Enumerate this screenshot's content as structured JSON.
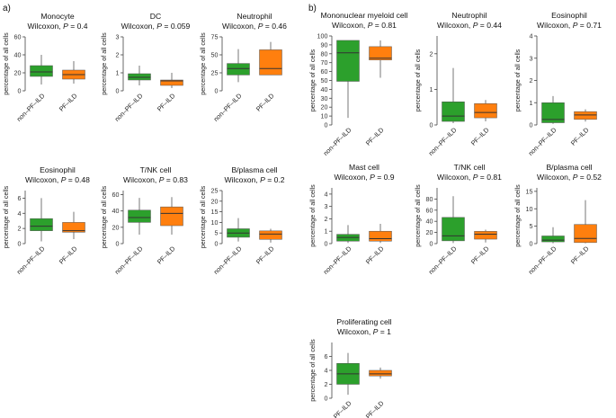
{
  "panel_labels": [
    "a)",
    "b)"
  ],
  "colors": {
    "non_pf_ild": "#2ca02c",
    "pf_ild": "#ff7f0e",
    "median": "#333333",
    "whisker": "#555555"
  },
  "chart_data": [
    {
      "panel": "a",
      "type": "box",
      "title": "Monocyte",
      "test": "Wilcoxon",
      "p_value": "0.4",
      "ylabel": "percentage of all cells",
      "categories": [
        "non–PF–ILD",
        "PF–ILD"
      ],
      "ylim": [
        0,
        60
      ],
      "yticks": [
        0,
        20,
        40,
        60
      ],
      "series": [
        {
          "name": "non–PF–ILD",
          "min": 7,
          "q1": 16,
          "median": 21,
          "q3": 28,
          "max": 40
        },
        {
          "name": "PF–ILD",
          "min": 8,
          "q1": 13,
          "median": 18,
          "q3": 23,
          "max": 33
        }
      ]
    },
    {
      "panel": "a",
      "type": "box",
      "title": "DC",
      "test": "Wilcoxon",
      "p_value": "0.059",
      "ylabel": "percentage of all cells",
      "categories": [
        "non–PF–ILD",
        "PF–ILD"
      ],
      "ylim": [
        0,
        3
      ],
      "yticks": [
        0,
        1,
        2,
        3
      ],
      "series": [
        {
          "name": "non–PF–ILD",
          "min": 0.3,
          "q1": 0.6,
          "median": 0.75,
          "q3": 0.95,
          "max": 1.4
        },
        {
          "name": "PF–ILD",
          "min": 0.15,
          "q1": 0.3,
          "median": 0.55,
          "q3": 0.6,
          "max": 1.0
        }
      ]
    },
    {
      "panel": "a",
      "type": "box",
      "title": "Neutrophil",
      "test": "Wilcoxon",
      "p_value": "0.46",
      "ylabel": "percentage of all cells",
      "categories": [
        "non–PF–ILD",
        "PF–ILD"
      ],
      "ylim": [
        0,
        75
      ],
      "yticks": [
        0,
        25,
        50,
        75
      ],
      "series": [
        {
          "name": "non–PF–ILD",
          "min": 12,
          "q1": 22,
          "median": 31,
          "q3": 38,
          "max": 58
        },
        {
          "name": "PF–ILD",
          "min": 22,
          "q1": 22,
          "median": 31,
          "q3": 57,
          "max": 68
        }
      ]
    },
    {
      "panel": "a",
      "type": "box",
      "title": "Eosinophil",
      "test": "Wilcoxon",
      "p_value": "0.48",
      "ylabel": "percentage of all cells",
      "categories": [
        "non–PF–ILD",
        "PF–ILD"
      ],
      "ylim": [
        0,
        7
      ],
      "yticks": [
        0,
        2,
        4,
        6
      ],
      "series": [
        {
          "name": "non–PF–ILD",
          "min": 0.3,
          "q1": 1.7,
          "median": 2.3,
          "q3": 3.3,
          "max": 6.0
        },
        {
          "name": "PF–ILD",
          "min": 0.6,
          "q1": 1.5,
          "median": 1.7,
          "q3": 2.8,
          "max": 4.2
        }
      ]
    },
    {
      "panel": "a",
      "type": "box",
      "title": "T/NK cell",
      "test": "Wilcoxon",
      "p_value": "0.83",
      "ylabel": "percentage of all cells",
      "categories": [
        "non–PF–ILD",
        "PF–ILD"
      ],
      "ylim": [
        0,
        65
      ],
      "yticks": [
        0,
        20,
        40,
        60
      ],
      "series": [
        {
          "name": "non–PF–ILD",
          "min": 11,
          "q1": 26,
          "median": 32,
          "q3": 41,
          "max": 56
        },
        {
          "name": "PF–ILD",
          "min": 11,
          "q1": 22,
          "median": 37,
          "q3": 45,
          "max": 57
        }
      ]
    },
    {
      "panel": "a",
      "type": "box",
      "title": "B/plasma cell",
      "test": "Wilcoxon",
      "p_value": "0.2",
      "ylabel": "percentage of all cells",
      "categories": [
        "non–PF–ILD",
        "PF–ILD"
      ],
      "ylim": [
        0,
        25
      ],
      "yticks": [
        0,
        5,
        10,
        15,
        20,
        25
      ],
      "series": [
        {
          "name": "non–PF–ILD",
          "min": 1,
          "q1": 3,
          "median": 5,
          "q3": 7,
          "max": 12
        },
        {
          "name": "PF–ILD",
          "min": 0.5,
          "q1": 2,
          "median": 4.5,
          "q3": 6,
          "max": 7
        }
      ]
    },
    {
      "panel": "b",
      "type": "box",
      "title": "Mononuclear myeloid cell",
      "test": "Wilcoxon",
      "p_value": "0.81",
      "ylabel": "percentage of all cells",
      "categories": [
        "non–PF–ILD",
        "PF–ILD"
      ],
      "ylim": [
        0,
        100
      ],
      "yticks": [
        0,
        10,
        20,
        30,
        40,
        50,
        60,
        70,
        80,
        90,
        100
      ],
      "series": [
        {
          "name": "non–PF–ILD",
          "min": 8,
          "q1": 49,
          "median": 81,
          "q3": 95,
          "max": 95
        },
        {
          "name": "PF–ILD",
          "min": 53,
          "q1": 73,
          "median": 75,
          "q3": 88,
          "max": 95
        }
      ]
    },
    {
      "panel": "b",
      "type": "box",
      "title": "Neutrophil",
      "test": "Wilcoxon",
      "p_value": "0.44",
      "ylabel": "percentage of all cells",
      "categories": [
        "non–PF–ILD",
        "PF–ILD"
      ],
      "ylim": [
        0,
        2.5
      ],
      "yticks": [
        0,
        1,
        2
      ],
      "series": [
        {
          "name": "non–PF–ILD",
          "min": 0.05,
          "q1": 0.1,
          "median": 0.25,
          "q3": 0.65,
          "max": 1.6
        },
        {
          "name": "PF–ILD",
          "min": 0.1,
          "q1": 0.2,
          "median": 0.35,
          "q3": 0.6,
          "max": 0.7
        }
      ]
    },
    {
      "panel": "b",
      "type": "box",
      "title": "Eosinophil",
      "test": "Wilcoxon",
      "p_value": "0.71",
      "ylabel": "percentage of all cells",
      "categories": [
        "non–PF–ILD",
        "PF–ILD"
      ],
      "ylim": [
        0,
        4
      ],
      "yticks": [
        0,
        1,
        2,
        3,
        4
      ],
      "series": [
        {
          "name": "non–PF–ILD",
          "min": 0.05,
          "q1": 0.1,
          "median": 0.25,
          "q3": 1.0,
          "max": 1.3
        },
        {
          "name": "PF–ILD",
          "min": 0.15,
          "q1": 0.25,
          "median": 0.45,
          "q3": 0.6,
          "max": 0.7
        }
      ]
    },
    {
      "panel": "b",
      "type": "box",
      "title": "Mast cell",
      "test": "Wilcoxon",
      "p_value": "0.9",
      "ylabel": "percentage of all cells",
      "categories": [
        "non–PF–ILD",
        "PF–ILD"
      ],
      "ylim": [
        0,
        4.5
      ],
      "yticks": [
        0,
        1,
        2,
        3,
        4
      ],
      "series": [
        {
          "name": "non–PF–ILD",
          "min": 0.05,
          "q1": 0.2,
          "median": 0.5,
          "q3": 0.75,
          "max": 1.5
        },
        {
          "name": "PF–ILD",
          "min": 0.05,
          "q1": 0.2,
          "median": 0.4,
          "q3": 1.0,
          "max": 1.6
        }
      ]
    },
    {
      "panel": "b",
      "type": "box",
      "title": "T/NK cell",
      "test": "Wilcoxon",
      "p_value": "0.81",
      "ylabel": "percentage of all cells",
      "categories": [
        "non–PF–ILD",
        "PF–ILD"
      ],
      "ylim": [
        0,
        100
      ],
      "yticks": [
        0,
        20,
        40,
        60,
        80
      ],
      "series": [
        {
          "name": "non–PF–ILD",
          "min": 1,
          "q1": 5,
          "median": 14,
          "q3": 47,
          "max": 85
        },
        {
          "name": "PF–ILD",
          "min": 2,
          "q1": 8,
          "median": 17,
          "q3": 22,
          "max": 25
        }
      ]
    },
    {
      "panel": "b",
      "type": "box",
      "title": "B/plasma cell",
      "test": "Wilcoxon",
      "p_value": "0.52",
      "ylabel": "percentage of all cells",
      "categories": [
        "non–PF–ILD",
        "PF–ILD"
      ],
      "ylim": [
        0,
        16
      ],
      "yticks": [
        0,
        5,
        10,
        15
      ],
      "series": [
        {
          "name": "non–PF–ILD",
          "min": 0.1,
          "q1": 0.5,
          "median": 1.0,
          "q3": 2.2,
          "max": 4.7
        },
        {
          "name": "PF–ILD",
          "min": 0.1,
          "q1": 0.3,
          "median": 1.5,
          "q3": 5.5,
          "max": 12.5
        }
      ]
    },
    {
      "panel": "b",
      "type": "box",
      "title": "Proliferating cell",
      "test": "Wilcoxon",
      "p_value": "1",
      "ylabel": "percentage of all cells",
      "categories": [
        "non–PF–ILD",
        "PF–ILD"
      ],
      "ylim": [
        0,
        8
      ],
      "yticks": [
        0,
        2,
        4,
        6
      ],
      "series": [
        {
          "name": "non–PF–ILD",
          "min": 0.5,
          "q1": 2.0,
          "median": 3.5,
          "q3": 5.0,
          "max": 6.5
        },
        {
          "name": "PF–ILD",
          "min": 2.8,
          "q1": 3.2,
          "median": 3.5,
          "q3": 4.0,
          "max": 4.4
        }
      ]
    }
  ]
}
